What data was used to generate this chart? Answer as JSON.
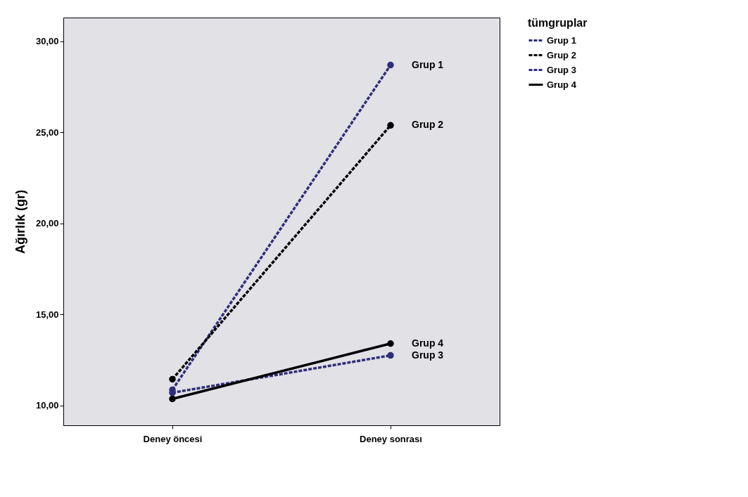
{
  "chart_data": {
    "type": "line",
    "ylabel": "Ağırlık (gr)",
    "legend_title": "tümgruplar",
    "categories": [
      "Deney öncesi",
      "Deney sonrası"
    ],
    "series": [
      {
        "name": "Grup 1",
        "color": "#2e2f7a",
        "values": [
          10.85,
          28.69
        ],
        "line_style": "dashed"
      },
      {
        "name": "Grup 2",
        "color": "#000000",
        "values": [
          11.43,
          25.38
        ],
        "line_style": "dashed"
      },
      {
        "name": "Grup 3",
        "color": "#2e2f7a",
        "values": [
          10.69,
          12.74
        ],
        "line_style": "dashed"
      },
      {
        "name": "Grup 4",
        "color": "#000000",
        "values": [
          10.35,
          13.39
        ],
        "line_style": "solid"
      }
    ],
    "ylim": [
      8.9,
      31.3
    ],
    "yticks": [
      {
        "value": 10,
        "label": "10,00"
      },
      {
        "value": 15,
        "label": "15,00"
      },
      {
        "value": 20,
        "label": "20,00"
      },
      {
        "value": 25,
        "label": "25,00"
      },
      {
        "value": 30,
        "label": "30,00"
      }
    ],
    "marker": "circle",
    "grid": false,
    "legend": "top right"
  }
}
